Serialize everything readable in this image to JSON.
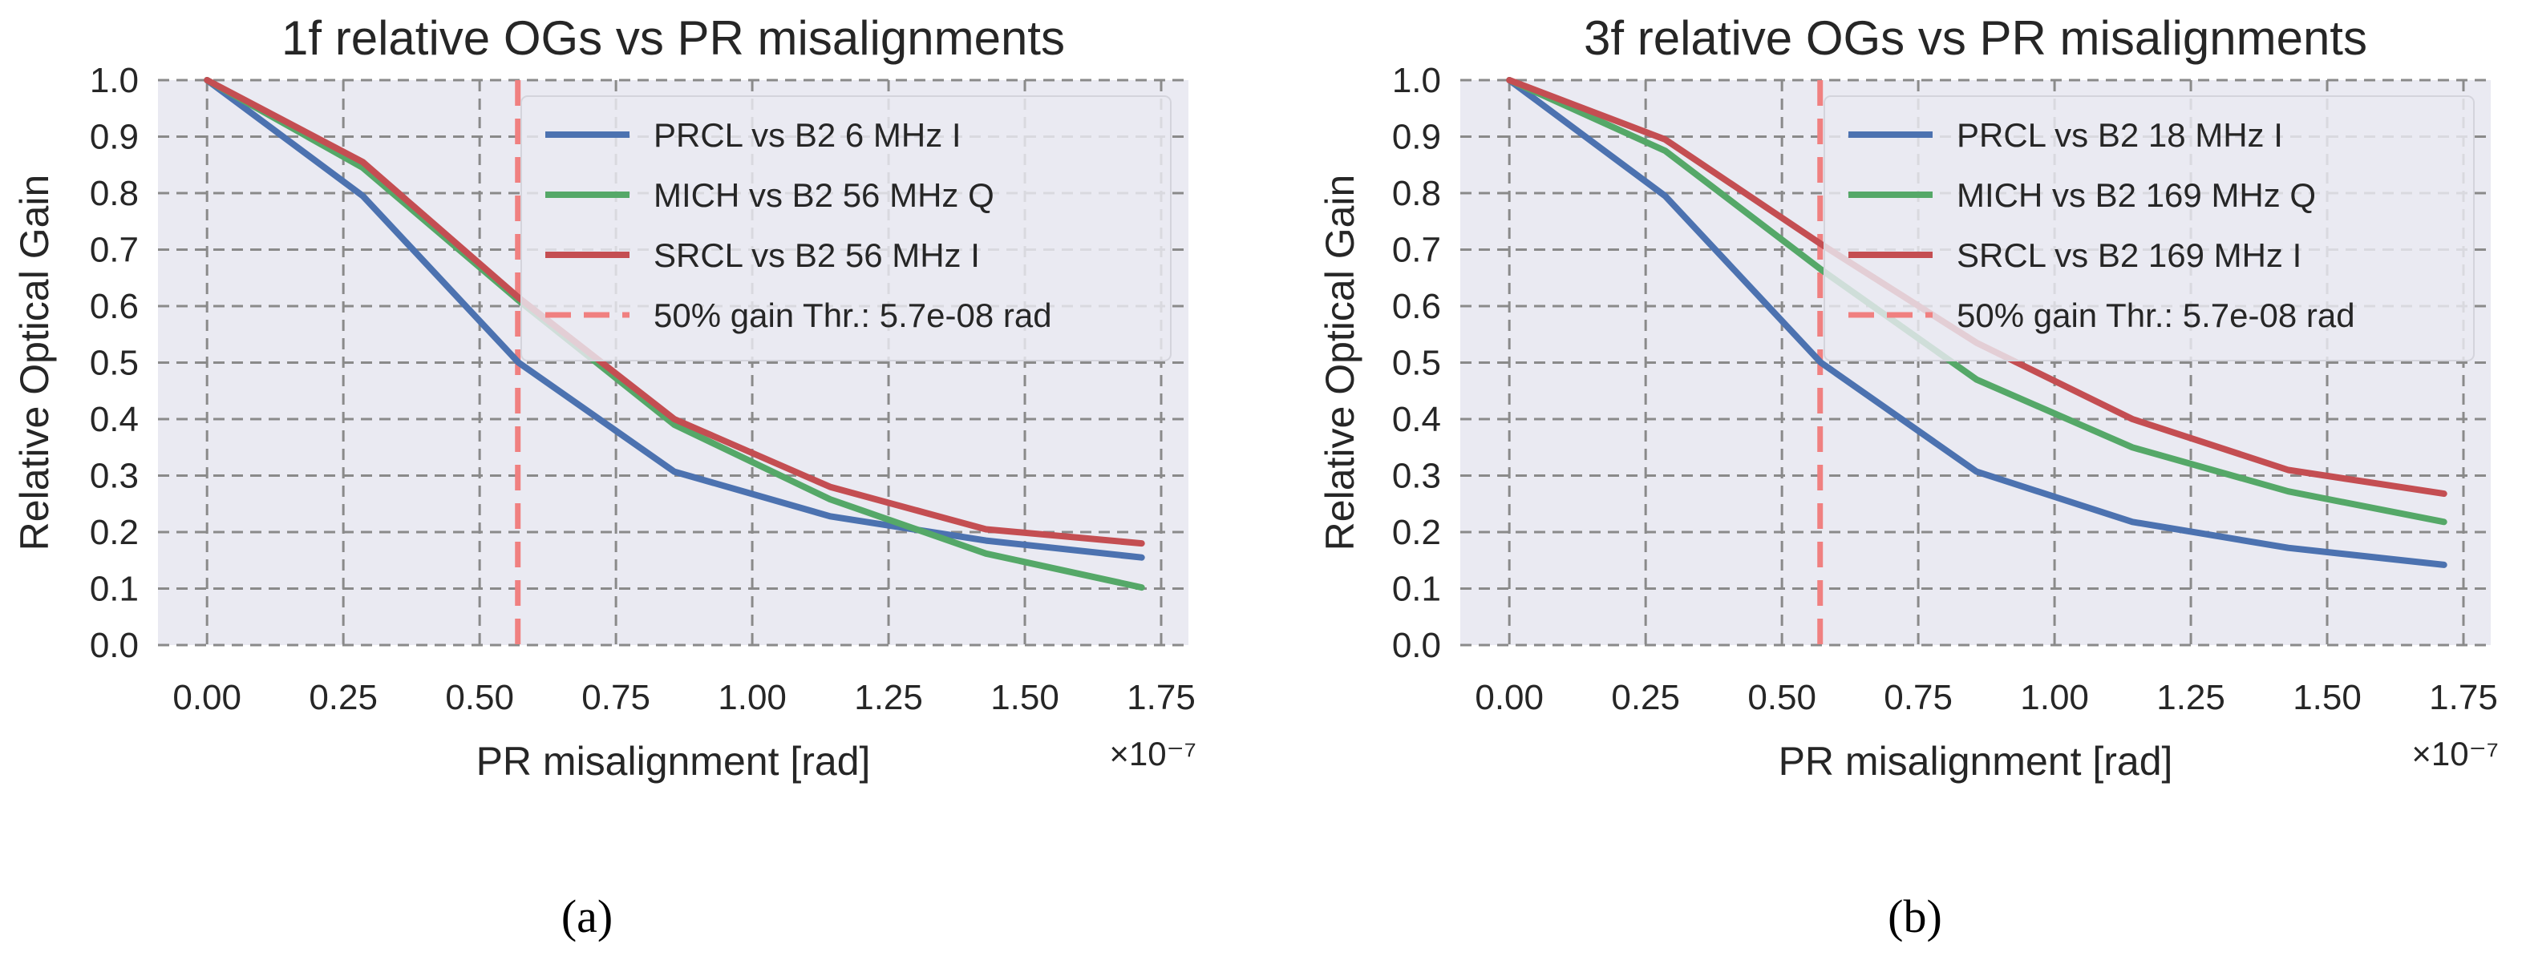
{
  "chart_data": [
    {
      "type": "line",
      "subfigure": "a",
      "subfigure_label": "(a)",
      "title": "1f relative OGs vs PR misalignments",
      "xlabel": "PR misalignment [rad]",
      "ylabel": "Relative Optical Gain",
      "x_offset_text": "×10⁻⁷",
      "xlim": [
        -0.09,
        1.8
      ],
      "ylim": [
        0.0,
        1.0
      ],
      "x_ticks": [
        0.0,
        0.25,
        0.5,
        0.75,
        1.0,
        1.25,
        1.5,
        1.75
      ],
      "x_tick_labels": [
        "0.00",
        "0.25",
        "0.50",
        "0.75",
        "1.00",
        "1.25",
        "1.50",
        "1.75"
      ],
      "y_ticks": [
        0.0,
        0.1,
        0.2,
        0.3,
        0.4,
        0.5,
        0.6,
        0.7,
        0.8,
        0.9,
        1.0
      ],
      "y_tick_labels": [
        "0.0",
        "0.1",
        "0.2",
        "0.3",
        "0.4",
        "0.5",
        "0.6",
        "0.7",
        "0.8",
        "0.9",
        "1.0"
      ],
      "grid": true,
      "legend_position": "upper-right",
      "x": [
        0.0,
        0.2857,
        0.5714,
        0.8571,
        1.1429,
        1.4286,
        1.7143
      ],
      "series": [
        {
          "name": "PRCL vs B2 6 MHz I",
          "color": "#4c72b0",
          "values": [
            1.0,
            0.795,
            0.5,
            0.307,
            0.228,
            0.185,
            0.155
          ]
        },
        {
          "name": "MICH vs B2 56 MHz Q",
          "color": "#55a868",
          "values": [
            1.0,
            0.845,
            0.61,
            0.39,
            0.258,
            0.162,
            0.102
          ]
        },
        {
          "name": "SRCL vs B2 56 MHz I",
          "color": "#c44e52",
          "values": [
            1.0,
            0.855,
            0.615,
            0.4,
            0.28,
            0.205,
            0.18
          ]
        }
      ],
      "threshold": {
        "name": "50% gain Thr.: 5.7e-08 rad",
        "x": 0.57,
        "color": "#f08080"
      }
    },
    {
      "type": "line",
      "subfigure": "b",
      "subfigure_label": "(b)",
      "title": "3f relative OGs vs PR misalignments",
      "xlabel": "PR misalignment [rad]",
      "ylabel": "Relative Optical Gain",
      "x_offset_text": "×10⁻⁷",
      "xlim": [
        -0.09,
        1.8
      ],
      "ylim": [
        0.0,
        1.0
      ],
      "x_ticks": [
        0.0,
        0.25,
        0.5,
        0.75,
        1.0,
        1.25,
        1.5,
        1.75
      ],
      "x_tick_labels": [
        "0.00",
        "0.25",
        "0.50",
        "0.75",
        "1.00",
        "1.25",
        "1.50",
        "1.75"
      ],
      "y_ticks": [
        0.0,
        0.1,
        0.2,
        0.3,
        0.4,
        0.5,
        0.6,
        0.7,
        0.8,
        0.9,
        1.0
      ],
      "y_tick_labels": [
        "0.0",
        "0.1",
        "0.2",
        "0.3",
        "0.4",
        "0.5",
        "0.6",
        "0.7",
        "0.8",
        "0.9",
        "1.0"
      ],
      "grid": true,
      "legend_position": "upper-right",
      "x": [
        0.0,
        0.2857,
        0.5714,
        0.8571,
        1.1429,
        1.4286,
        1.7143
      ],
      "series": [
        {
          "name": "PRCL vs B2 18 MHz I",
          "color": "#4c72b0",
          "values": [
            1.0,
            0.795,
            0.5,
            0.307,
            0.218,
            0.172,
            0.142
          ]
        },
        {
          "name": "MICH vs B2 169 MHz Q",
          "color": "#55a868",
          "values": [
            1.0,
            0.875,
            0.665,
            0.47,
            0.35,
            0.272,
            0.218
          ]
        },
        {
          "name": "SRCL vs B2 169 MHz I",
          "color": "#c44e52",
          "values": [
            1.0,
            0.895,
            0.71,
            0.535,
            0.4,
            0.31,
            0.268
          ]
        }
      ],
      "threshold": {
        "name": "50% gain Thr.: 5.7e-08 rad",
        "x": 0.57,
        "color": "#f08080"
      }
    }
  ]
}
